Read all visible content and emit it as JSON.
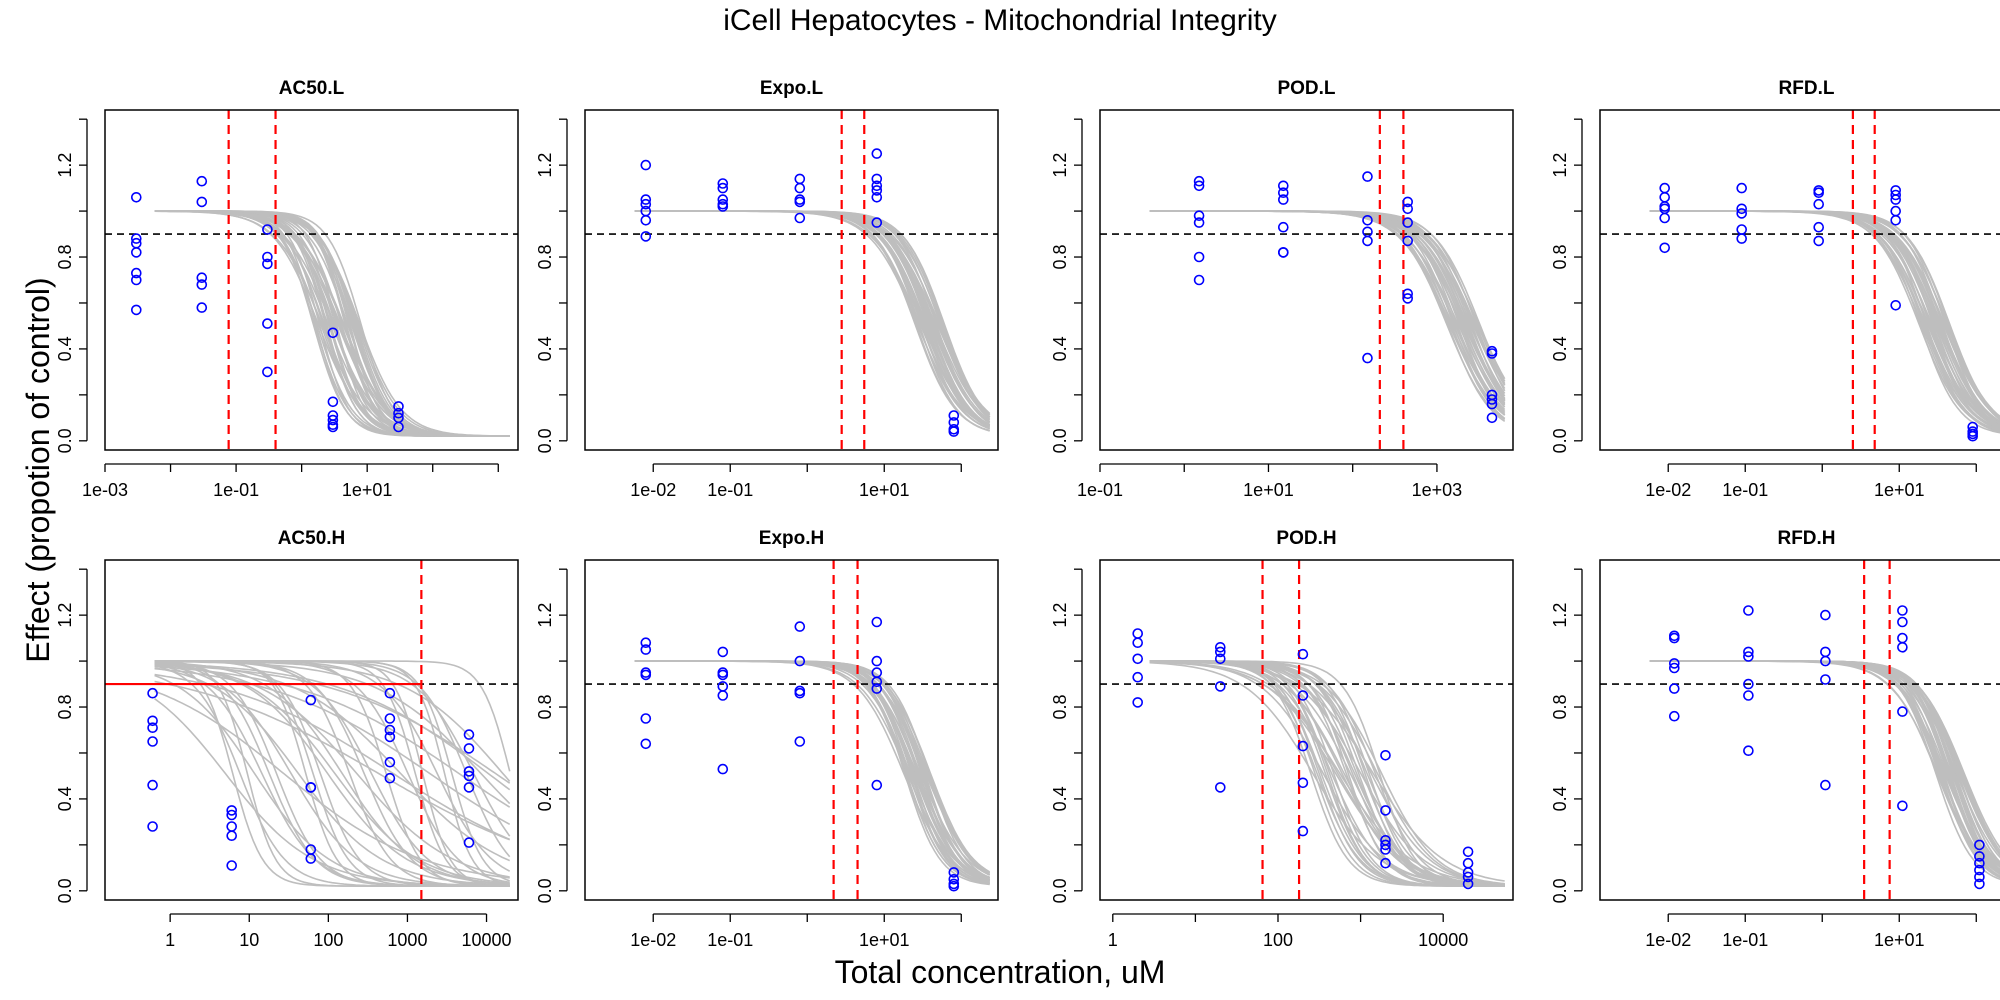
{
  "figure": {
    "title": "iCell Hepatocytes -  Mitochondrial Integrity",
    "xlabel": "Total concentration, uM",
    "ylabel": "Effect (propotion of control)"
  },
  "colors": {
    "curve": "#bebebe",
    "point": "#0000ff",
    "marker": "#ff0000",
    "threshold": "#000000"
  },
  "chart_data": [
    {
      "type": "scatter",
      "title": "AC50.L",
      "xscale": "log",
      "xlim": [
        0.001,
        2000
      ],
      "ylim": [
        -0.04,
        1.44
      ],
      "xticks": [
        0.001,
        0.1,
        10
      ],
      "xticklabels": [
        "1e-03",
        "1e-01",
        "1e+01"
      ],
      "yticks": [
        0,
        0.4,
        0.8,
        1.2
      ],
      "yticklabels": [
        "0.0",
        "0.4",
        "0.8",
        "1.2"
      ],
      "threshold": 0.9,
      "vlines": [
        0.077,
        0.4
      ],
      "hline_red": null,
      "curves": {
        "top": 1.0,
        "ec50_min": 1.5,
        "ec50_max": 8,
        "hill_min": 1.2,
        "hill_max": 2.0,
        "bottom": 0.02,
        "count": 40
      },
      "points": [
        {
          "x": 0.003,
          "y": [
            1.06,
            0.88,
            0.86,
            0.82,
            0.73,
            0.7,
            0.57
          ]
        },
        {
          "x": 0.03,
          "y": [
            1.13,
            1.04,
            0.71,
            0.68,
            0.58
          ]
        },
        {
          "x": 0.3,
          "y": [
            0.92,
            0.8,
            0.77,
            0.51,
            0.3
          ]
        },
        {
          "x": 3,
          "y": [
            0.47,
            0.17,
            0.11,
            0.09,
            0.07,
            0.06
          ]
        },
        {
          "x": 30,
          "y": [
            0.15,
            0.12,
            0.1,
            0.06
          ]
        }
      ]
    },
    {
      "type": "scatter",
      "title": "Expo.L",
      "xscale": "log",
      "xlim": [
        0.0013,
        300
      ],
      "ylim": [
        -0.04,
        1.44
      ],
      "xticks": [
        0.01,
        0.1,
        10
      ],
      "xticklabels": [
        "1e-02",
        "1e-01",
        "1e+01"
      ],
      "yticks": [
        0,
        0.4,
        0.8,
        1.2
      ],
      "yticklabels": [
        "0.0",
        "0.4",
        "0.8",
        "1.2"
      ],
      "threshold": 0.9,
      "vlines": [
        2.8,
        5.5
      ],
      "hline_red": null,
      "curves": {
        "top": 1.0,
        "ec50_min": 25,
        "ec50_max": 60,
        "hill_min": 1.4,
        "hill_max": 1.8,
        "bottom": 0.02,
        "count": 30
      },
      "points": [
        {
          "x": 0.008,
          "y": [
            1.2,
            1.05,
            1.03,
            1.0,
            0.96,
            0.89
          ]
        },
        {
          "x": 0.08,
          "y": [
            1.12,
            1.1,
            1.05,
            1.03,
            1.02
          ]
        },
        {
          "x": 0.8,
          "y": [
            1.14,
            1.1,
            1.05,
            1.04,
            0.97
          ]
        },
        {
          "x": 8,
          "y": [
            1.25,
            1.14,
            1.11,
            1.09,
            1.06,
            0.95
          ]
        },
        {
          "x": 80,
          "y": [
            0.11,
            0.08,
            0.05,
            0.04
          ]
        }
      ]
    },
    {
      "type": "scatter",
      "title": "POD.L",
      "xscale": "log",
      "xlim": [
        0.1,
        8000
      ],
      "ylim": [
        -0.04,
        1.44
      ],
      "xticks": [
        0.1,
        10,
        1000
      ],
      "xticklabels": [
        "1e-01",
        "1e+01",
        "1e+03"
      ],
      "yticks": [
        0,
        0.4,
        0.8,
        1.2
      ],
      "yticklabels": [
        "0.0",
        "0.4",
        "0.8",
        "1.2"
      ],
      "threshold": 0.9,
      "vlines": [
        210,
        400
      ],
      "hline_red": null,
      "curves": {
        "top": 1.0,
        "ec50_min": 1300,
        "ec50_max": 3200,
        "hill_min": 1.4,
        "hill_max": 1.8,
        "bottom": 0.02,
        "count": 30
      },
      "points": [
        {
          "x": 1.5,
          "y": [
            1.13,
            1.11,
            0.98,
            0.95,
            0.8,
            0.7
          ]
        },
        {
          "x": 15,
          "y": [
            1.11,
            1.08,
            1.05,
            0.93,
            0.82,
            0.82
          ]
        },
        {
          "x": 150,
          "y": [
            1.15,
            0.96,
            0.91,
            0.87,
            0.36
          ]
        },
        {
          "x": 450,
          "y": [
            1.04,
            1.01,
            0.95,
            0.87,
            0.64,
            0.62
          ]
        },
        {
          "x": 4500,
          "y": [
            0.39,
            0.38,
            0.2,
            0.18,
            0.16,
            0.1
          ]
        }
      ]
    },
    {
      "type": "scatter",
      "title": "RFD.L",
      "xscale": "log",
      "xlim": [
        0.0013,
        300
      ],
      "ylim": [
        -0.04,
        1.44
      ],
      "xticks": [
        0.01,
        0.1,
        10
      ],
      "xticklabels": [
        "1e-02",
        "1e-01",
        "1e+01"
      ],
      "yticks": [
        0,
        0.4,
        0.8,
        1.2
      ],
      "yticklabels": [
        "0.0",
        "0.4",
        "0.8",
        "1.2"
      ],
      "threshold": 0.9,
      "vlines": [
        2.5,
        4.8
      ],
      "hline_red": null,
      "curves": {
        "top": 1.0,
        "ec50_min": 18,
        "ec50_max": 45,
        "hill_min": 1.4,
        "hill_max": 1.8,
        "bottom": 0.02,
        "count": 30
      },
      "points": [
        {
          "x": 0.009,
          "y": [
            1.1,
            1.06,
            1.02,
            1.01,
            0.97,
            0.84
          ]
        },
        {
          "x": 0.09,
          "y": [
            1.1,
            1.01,
            0.99,
            0.92,
            0.88
          ]
        },
        {
          "x": 0.9,
          "y": [
            1.09,
            1.08,
            1.03,
            0.93,
            0.87
          ]
        },
        {
          "x": 9,
          "y": [
            1.09,
            1.07,
            1.05,
            1.0,
            0.96,
            0.59
          ]
        },
        {
          "x": 90,
          "y": [
            0.06,
            0.04,
            0.03,
            0.02
          ]
        }
      ]
    },
    {
      "type": "scatter",
      "title": "AC50.H",
      "xscale": "log",
      "xlim": [
        0.15,
        25000
      ],
      "ylim": [
        -0.04,
        1.44
      ],
      "xticks": [
        1,
        10,
        100,
        1000,
        10000
      ],
      "xticklabels": [
        "1",
        "10",
        "100",
        "1000",
        "10000"
      ],
      "yticks": [
        0,
        0.4,
        0.8,
        1.2
      ],
      "yticklabels": [
        "0.0",
        "0.4",
        "0.8",
        "1.2"
      ],
      "threshold": 0.9,
      "vlines": [
        1500
      ],
      "hline_red": 0.9,
      "curves": {
        "top": 1.0,
        "ec50_min": 5,
        "ec50_max": 20000,
        "hill_min": 0.35,
        "hill_max": 2.5,
        "bottom": 0.02,
        "count": 40
      },
      "points": [
        {
          "x": 0.6,
          "y": [
            0.86,
            0.74,
            0.71,
            0.65,
            0.46,
            0.28
          ]
        },
        {
          "x": 6,
          "y": [
            0.35,
            0.33,
            0.28,
            0.24,
            0.11
          ]
        },
        {
          "x": 60,
          "y": [
            0.83,
            0.45,
            0.45,
            0.18,
            0.14
          ]
        },
        {
          "x": 600,
          "y": [
            0.86,
            0.75,
            0.7,
            0.67,
            0.56,
            0.49
          ]
        },
        {
          "x": 6000,
          "y": [
            0.68,
            0.62,
            0.52,
            0.5,
            0.45,
            0.21
          ]
        }
      ]
    },
    {
      "type": "scatter",
      "title": "Expo.H",
      "xscale": "log",
      "xlim": [
        0.0013,
        300
      ],
      "ylim": [
        -0.04,
        1.44
      ],
      "xticks": [
        0.01,
        0.1,
        10
      ],
      "xticklabels": [
        "1e-02",
        "1e-01",
        "1e+01"
      ],
      "yticks": [
        0,
        0.4,
        0.8,
        1.2
      ],
      "yticklabels": [
        "0.0",
        "0.4",
        "0.8",
        "1.2"
      ],
      "threshold": 0.9,
      "vlines": [
        2.2,
        4.5
      ],
      "hline_red": null,
      "curves": {
        "top": 1.0,
        "ec50_min": 18,
        "ec50_max": 40,
        "hill_min": 1.4,
        "hill_max": 1.9,
        "bottom": 0.02,
        "count": 30
      },
      "points": [
        {
          "x": 0.008,
          "y": [
            1.08,
            1.05,
            0.95,
            0.94,
            0.75,
            0.64
          ]
        },
        {
          "x": 0.08,
          "y": [
            1.04,
            0.95,
            0.94,
            0.89,
            0.85,
            0.53
          ]
        },
        {
          "x": 0.8,
          "y": [
            1.15,
            1.0,
            0.87,
            0.86,
            0.65
          ]
        },
        {
          "x": 8,
          "y": [
            1.17,
            1.0,
            0.95,
            0.91,
            0.88,
            0.46
          ]
        },
        {
          "x": 80,
          "y": [
            0.08,
            0.05,
            0.03,
            0.02
          ]
        }
      ]
    },
    {
      "type": "scatter",
      "title": "POD.H",
      "xscale": "log",
      "xlim": [
        0.7,
        70000
      ],
      "ylim": [
        -0.04,
        1.44
      ],
      "xticks": [
        1,
        100,
        10000
      ],
      "xticklabels": [
        "1",
        "100",
        "10000"
      ],
      "yticks": [
        0,
        0.4,
        0.8,
        1.2
      ],
      "yticklabels": [
        "0.0",
        "0.4",
        "0.8",
        "1.2"
      ],
      "threshold": 0.9,
      "vlines": [
        65,
        180
      ],
      "hline_red": null,
      "curves": {
        "top": 1.0,
        "ec50_min": 250,
        "ec50_max": 1800,
        "hill_min": 1.0,
        "hill_max": 2.0,
        "bottom": 0.02,
        "count": 35
      },
      "points": [
        {
          "x": 2,
          "y": [
            1.12,
            1.08,
            1.01,
            0.93,
            0.82
          ]
        },
        {
          "x": 20,
          "y": [
            1.06,
            1.04,
            1.01,
            0.89,
            0.45
          ]
        },
        {
          "x": 200,
          "y": [
            1.03,
            0.85,
            0.63,
            0.47,
            0.26
          ]
        },
        {
          "x": 2000,
          "y": [
            0.59,
            0.35,
            0.22,
            0.2,
            0.18,
            0.12
          ]
        },
        {
          "x": 20000,
          "y": [
            0.17,
            0.12,
            0.08,
            0.06,
            0.03
          ]
        }
      ]
    },
    {
      "type": "scatter",
      "title": "RFD.H",
      "xscale": "log",
      "xlim": [
        0.0013,
        300
      ],
      "ylim": [
        -0.04,
        1.44
      ],
      "xticks": [
        0.01,
        0.1,
        10
      ],
      "xticklabels": [
        "1e-02",
        "1e-01",
        "1e+01"
      ],
      "yticks": [
        0,
        0.4,
        0.8,
        1.2
      ],
      "yticklabels": [
        "0.0",
        "0.4",
        "0.8",
        "1.2"
      ],
      "threshold": 0.9,
      "vlines": [
        3.5,
        7.5
      ],
      "hline_red": null,
      "curves": {
        "top": 1.0,
        "ec50_min": 30,
        "ec50_max": 70,
        "hill_min": 1.4,
        "hill_max": 1.9,
        "bottom": 0.02,
        "count": 30
      },
      "points": [
        {
          "x": 0.012,
          "y": [
            1.11,
            1.1,
            0.99,
            0.97,
            0.88,
            0.76
          ]
        },
        {
          "x": 0.11,
          "y": [
            1.22,
            1.04,
            1.02,
            0.9,
            0.85,
            0.61
          ]
        },
        {
          "x": 1.1,
          "y": [
            1.2,
            1.04,
            1.0,
            0.92,
            0.46
          ]
        },
        {
          "x": 11,
          "y": [
            1.22,
            1.17,
            1.1,
            1.06,
            0.78,
            0.37
          ]
        },
        {
          "x": 110,
          "y": [
            0.2,
            0.15,
            0.12,
            0.09,
            0.06,
            0.03
          ]
        }
      ]
    }
  ]
}
